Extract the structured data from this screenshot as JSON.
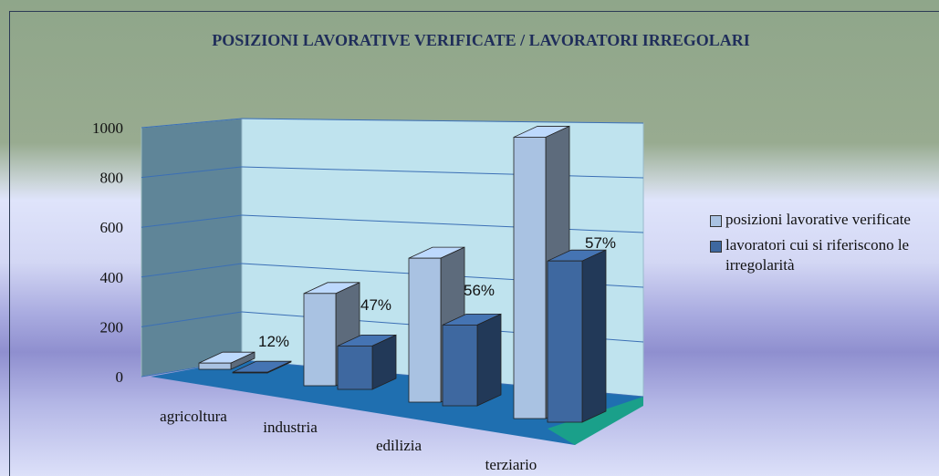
{
  "chart_data": {
    "type": "bar3d",
    "title": "POSIZIONI LAVORATIVE VERIFICATE / LAVORATORI IRREGOLARI",
    "categories": [
      "agricoltura",
      "industria",
      "edilizia",
      "terziario"
    ],
    "series": [
      {
        "name": "posizioni lavorative verificate",
        "color": "#a9c2e2",
        "values": [
          25,
          340,
          490,
          890
        ]
      },
      {
        "name": "lavoratori cui si riferiscono le irregolarità",
        "color": "#3e68a0",
        "values": [
          3,
          160,
          275,
          510
        ]
      }
    ],
    "annotations": [
      "12%",
      "47%",
      "56%",
      "57%"
    ],
    "ylim": [
      0,
      1000
    ],
    "yticks": [
      0,
      200,
      400,
      600,
      800,
      1000
    ],
    "grid": true
  }
}
